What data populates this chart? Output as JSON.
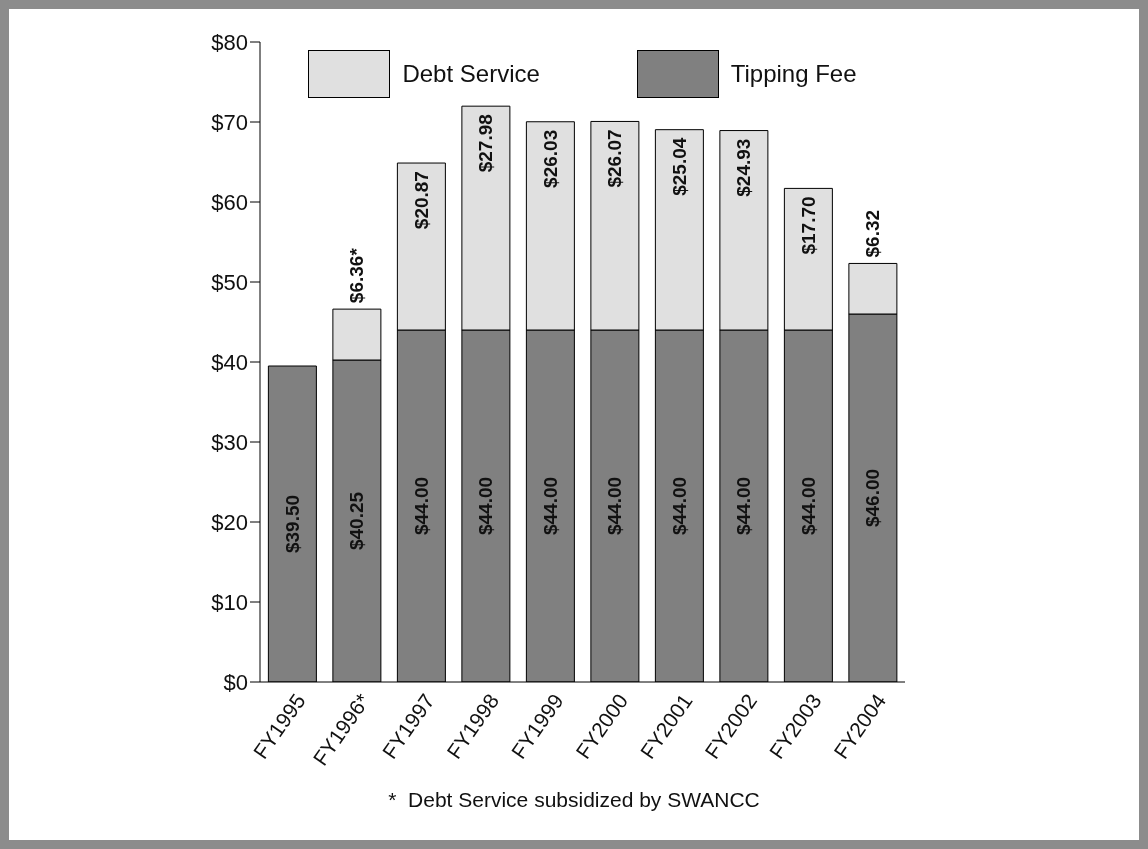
{
  "chart_data": {
    "type": "bar",
    "stacked": true,
    "categories": [
      "FY1995",
      "FY1996*",
      "FY1997",
      "FY1998",
      "FY1999",
      "FY2000",
      "FY2001",
      "FY2002",
      "FY2003",
      "FY2004"
    ],
    "series": [
      {
        "name": "Tipping Fee",
        "color": "#808080",
        "values": [
          39.5,
          40.25,
          44,
          44,
          44,
          44,
          44,
          44,
          44,
          46
        ],
        "value_labels": [
          "$39.50",
          "$40.25",
          "$44.00",
          "$44.00",
          "$44.00",
          "$44.00",
          "$44.00",
          "$44.00",
          "$44.00",
          "$46.00"
        ]
      },
      {
        "name": "Debt Service",
        "color": "#e0e0e0",
        "values": [
          null,
          6.36,
          20.87,
          27.98,
          26.03,
          26.07,
          25.04,
          24.93,
          17.7,
          6.32
        ],
        "value_labels": [
          null,
          "$6.36*",
          "$20.87",
          "$27.98",
          "$26.03",
          "$26.07",
          "$25.04",
          "$24.93",
          "$17.70",
          "$6.32"
        ]
      }
    ],
    "ylim": [
      0,
      80
    ],
    "yticks": [
      {
        "value": 0,
        "label": "$0"
      },
      {
        "value": 10,
        "label": "$10"
      },
      {
        "value": 20,
        "label": "$20"
      },
      {
        "value": 30,
        "label": "$30"
      },
      {
        "value": 40,
        "label": "$40"
      },
      {
        "value": 50,
        "label": "$50"
      },
      {
        "value": 60,
        "label": "$60"
      },
      {
        "value": 70,
        "label": "$70"
      },
      {
        "value": 80,
        "label": "$80"
      }
    ],
    "grid": false,
    "legend": "top",
    "annotations": [
      "*  Debt Service subsidized by SWANCC"
    ]
  }
}
